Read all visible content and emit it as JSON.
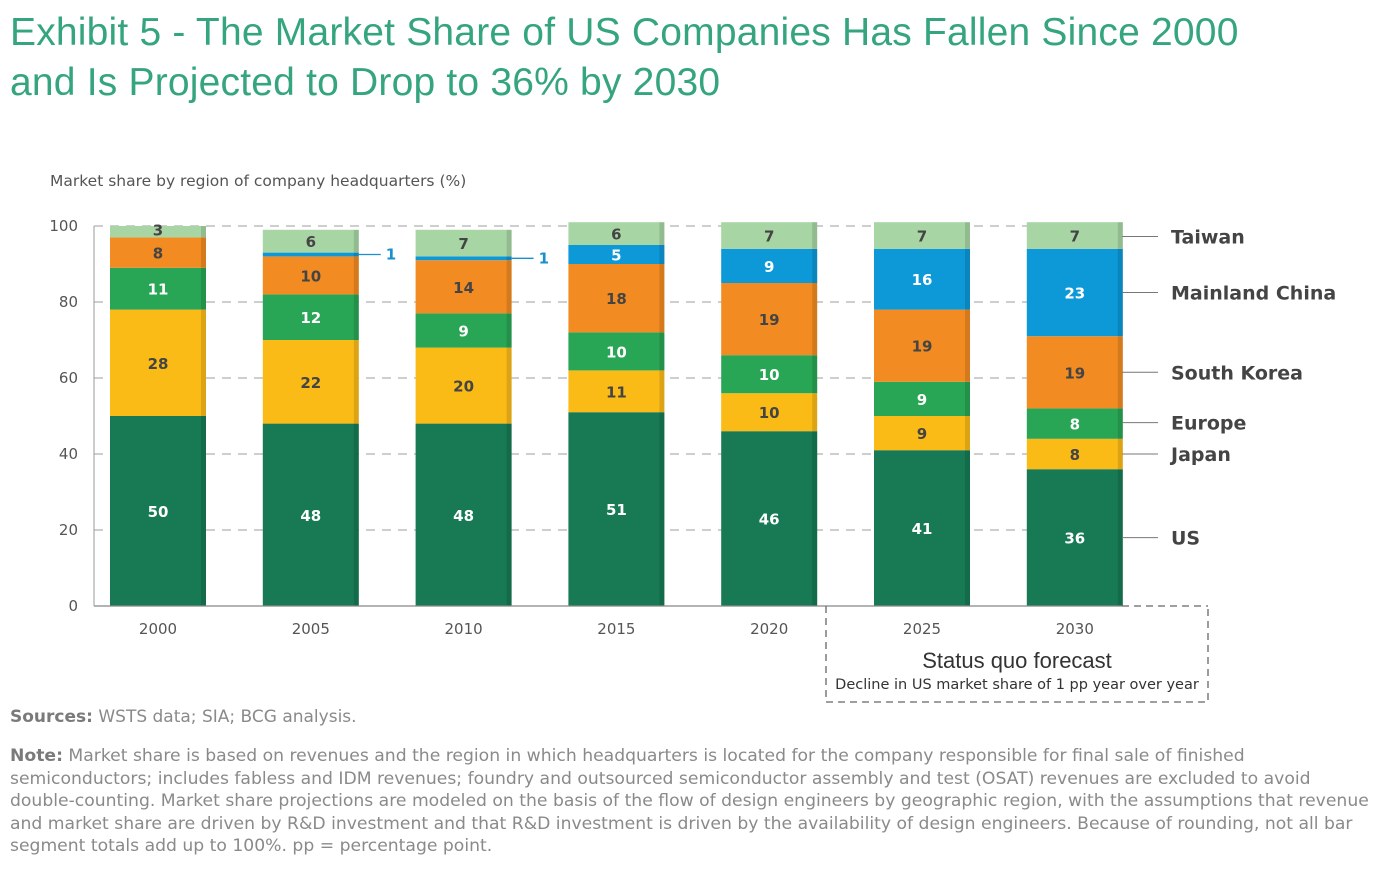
{
  "title_lines": [
    "Exhibit 5 - The Market Share of US Companies Has Fallen Since 2000",
    "and Is Projected to Drop to 36% by 2030"
  ],
  "sources": {
    "label": "Sources:",
    "text": " WSTS data; SIA; BCG analysis."
  },
  "note": {
    "label": "Note:",
    "text": " Market share is based on revenues and the region in which headquarters is located for the company responsible for final sale of finished semiconductors; includes fabless and IDM revenues; foundry and outsourced semiconductor assembly and test (OSAT) revenues are excluded to avoid double-counting. Market share projections are modeled on the basis of the flow of design engineers by geographic region, with the assumptions that revenue and market share are driven by R&D investment and that R&D investment is driven by the availability of design engineers. Because of rounding, not all bar segment totals add up to 100%. pp = percentage point."
  },
  "colors": {
    "US": "#177a55",
    "Japan": "#fbbb17",
    "Europe": "#29a556",
    "South Korea": "#f28b22",
    "Mainland China": "#0d98d8",
    "Taiwan": "#a8d5a4",
    "grid": "#9e9e9e",
    "label_dark": "#444444",
    "label_light": "#ffffff",
    "callout": "#1a8fd0"
  },
  "forecast": {
    "title": "Status quo forecast",
    "subtitle": "Decline in US market share of 1 pp year over year"
  },
  "chart_data": {
    "type": "bar",
    "stacked": true,
    "ylabel": "Market share by region of company headquarters (%)",
    "ylim": [
      0,
      100
    ],
    "yticks": [
      0,
      20,
      40,
      60,
      80,
      100
    ],
    "grid": "dashed horizontal",
    "legend": "right, labels aligned to 2030 bar segments",
    "categories": [
      "2000",
      "2005",
      "2010",
      "2015",
      "2020",
      "2025",
      "2030"
    ],
    "series": [
      {
        "name": "US",
        "values": [
          50,
          48,
          48,
          51,
          46,
          41,
          36
        ]
      },
      {
        "name": "Japan",
        "values": [
          28,
          22,
          20,
          11,
          10,
          9,
          8
        ]
      },
      {
        "name": "Europe",
        "values": [
          11,
          12,
          9,
          10,
          10,
          9,
          8
        ]
      },
      {
        "name": "South Korea",
        "values": [
          8,
          10,
          14,
          18,
          19,
          19,
          19
        ]
      },
      {
        "name": "Mainland China",
        "values": [
          0,
          1,
          1,
          5,
          9,
          16,
          23
        ]
      },
      {
        "name": "Taiwan",
        "values": [
          3,
          6,
          7,
          6,
          7,
          7,
          7
        ]
      }
    ]
  }
}
